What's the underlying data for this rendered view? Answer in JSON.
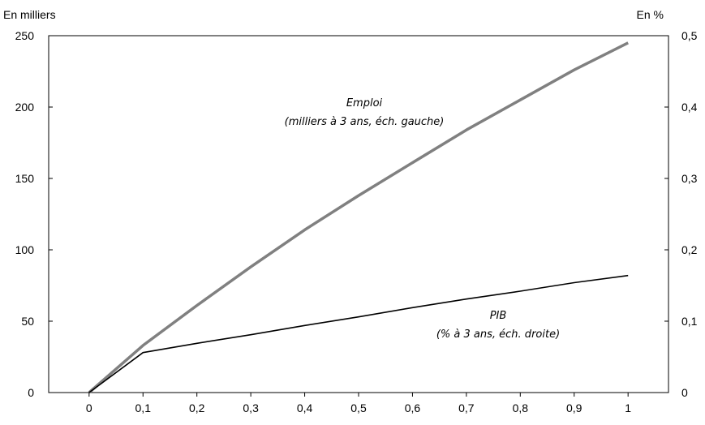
{
  "chart_data": {
    "type": "line",
    "x": [
      0,
      0.1,
      0.2,
      0.3,
      0.4,
      0.5,
      0.6,
      0.7,
      0.8,
      0.9,
      1
    ],
    "x_tick_labels": [
      "0",
      "0,1",
      "0,2",
      "0,3",
      "0,4",
      "0,5",
      "0,6",
      "0,7",
      "0,8",
      "0,9",
      "1"
    ],
    "xlim": [
      -0.075,
      1.075
    ],
    "left_axis": {
      "unit_label": "En milliers",
      "ylim": [
        0,
        250
      ],
      "ticks": [
        0,
        50,
        100,
        150,
        200,
        250
      ],
      "tick_labels": [
        "0",
        "50",
        "100",
        "150",
        "200",
        "250"
      ]
    },
    "right_axis": {
      "unit_label": "En %",
      "ylim": [
        0,
        0.5
      ],
      "ticks": [
        0,
        0.1,
        0.2,
        0.3,
        0.4,
        0.5
      ],
      "tick_labels": [
        "0",
        "0,1",
        "0,2",
        "0,3",
        "0,4",
        "0,5"
      ]
    },
    "series": [
      {
        "axis": "left",
        "color": "#808080",
        "values": [
          0,
          33,
          61,
          88,
          114,
          138,
          161,
          184,
          205,
          226,
          245
        ],
        "annotation": [
          "Emploi",
          "(milliers à 3 ans, éch. gauche)"
        ]
      },
      {
        "axis": "right",
        "color": "#000000",
        "values": [
          0,
          0.056,
          0.069,
          0.081,
          0.094,
          0.106,
          0.119,
          0.131,
          0.142,
          0.154,
          0.164
        ],
        "annotation": [
          "PIB",
          "(% à 3 ans, éch. droite)"
        ]
      }
    ],
    "grid": false,
    "legend": "none"
  }
}
